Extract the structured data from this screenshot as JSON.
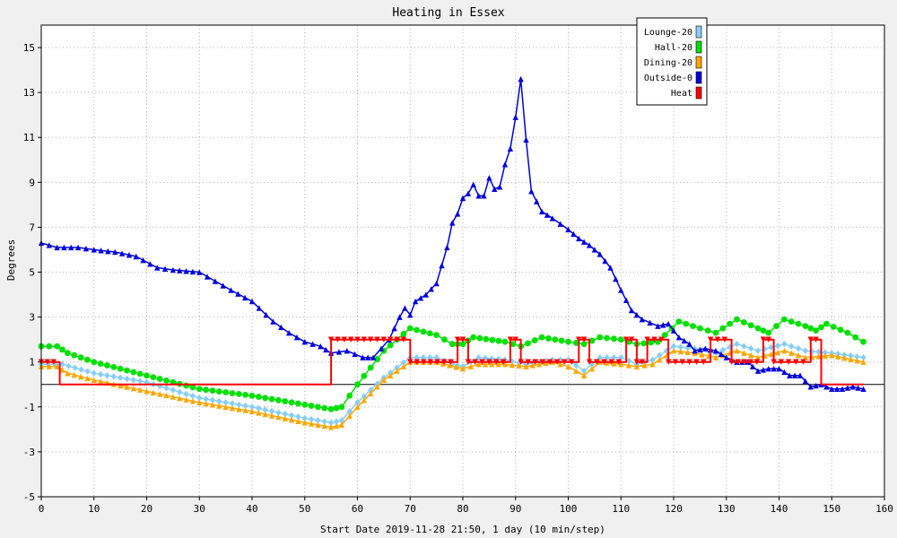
{
  "chart_data": {
    "type": "line",
    "title": "Heating in Essex",
    "xlabel": "Start Date 2019-11-28 21:50, 1 day (10 min/step)",
    "ylabel": "Degrees",
    "xlim": [
      0,
      160
    ],
    "ylim": [
      -5,
      16
    ],
    "x_ticks": [
      0,
      10,
      20,
      30,
      40,
      50,
      60,
      70,
      80,
      90,
      100,
      110,
      120,
      130,
      140,
      150,
      160
    ],
    "y_ticks": [
      -5,
      -3,
      -1,
      1,
      3,
      5,
      7,
      9,
      11,
      13,
      15
    ],
    "grid": true,
    "legend_position": "top-right",
    "series": [
      {
        "name": "Lounge-20",
        "color": "#87cefa",
        "marker": "diamond",
        "points": [
          [
            0,
            0.9
          ],
          [
            4,
            0.9
          ],
          [
            10,
            0.5
          ],
          [
            20,
            0.1
          ],
          [
            30,
            -0.6
          ],
          [
            40,
            -1.0
          ],
          [
            50,
            -1.5
          ],
          [
            55,
            -1.7
          ],
          [
            57,
            -1.6
          ],
          [
            60,
            -0.8
          ],
          [
            65,
            0.3
          ],
          [
            70,
            1.2
          ],
          [
            75,
            1.2
          ],
          [
            78,
            0.9
          ],
          [
            80,
            0.8
          ],
          [
            83,
            1.2
          ],
          [
            88,
            1.1
          ],
          [
            92,
            0.9
          ],
          [
            97,
            1.1
          ],
          [
            100,
            1.1
          ],
          [
            103,
            0.6
          ],
          [
            106,
            1.2
          ],
          [
            110,
            1.2
          ],
          [
            113,
            0.9
          ],
          [
            116,
            1.1
          ],
          [
            120,
            1.7
          ],
          [
            124,
            1.6
          ],
          [
            128,
            1.4
          ],
          [
            132,
            1.8
          ],
          [
            136,
            1.5
          ],
          [
            141,
            1.8
          ],
          [
            145,
            1.5
          ],
          [
            150,
            1.4
          ],
          [
            156,
            1.2
          ]
        ]
      },
      {
        "name": "Hall-20",
        "color": "#00e000",
        "marker": "circle",
        "points": [
          [
            0,
            1.7
          ],
          [
            3,
            1.7
          ],
          [
            5,
            1.4
          ],
          [
            10,
            1.0
          ],
          [
            20,
            0.4
          ],
          [
            30,
            -0.2
          ],
          [
            40,
            -0.5
          ],
          [
            50,
            -0.9
          ],
          [
            55,
            -1.1
          ],
          [
            57,
            -1.0
          ],
          [
            60,
            0.0
          ],
          [
            65,
            1.5
          ],
          [
            70,
            2.5
          ],
          [
            75,
            2.2
          ],
          [
            78,
            1.8
          ],
          [
            80,
            1.8
          ],
          [
            82,
            2.1
          ],
          [
            88,
            1.9
          ],
          [
            91,
            1.7
          ],
          [
            95,
            2.1
          ],
          [
            100,
            1.9
          ],
          [
            103,
            1.8
          ],
          [
            106,
            2.1
          ],
          [
            110,
            2.0
          ],
          [
            113,
            1.8
          ],
          [
            117,
            1.9
          ],
          [
            121,
            2.8
          ],
          [
            125,
            2.5
          ],
          [
            128,
            2.3
          ],
          [
            132,
            2.9
          ],
          [
            136,
            2.5
          ],
          [
            138,
            2.3
          ],
          [
            141,
            2.9
          ],
          [
            145,
            2.6
          ],
          [
            147,
            2.4
          ],
          [
            149,
            2.7
          ],
          [
            153,
            2.3
          ],
          [
            156,
            1.9
          ]
        ]
      },
      {
        "name": "Dining-20",
        "color": "#ffa500",
        "marker": "triangle-up",
        "points": [
          [
            0,
            0.8
          ],
          [
            3,
            0.8
          ],
          [
            5,
            0.5
          ],
          [
            10,
            0.2
          ],
          [
            20,
            -0.3
          ],
          [
            30,
            -0.8
          ],
          [
            40,
            -1.2
          ],
          [
            50,
            -1.7
          ],
          [
            55,
            -1.9
          ],
          [
            57,
            -1.8
          ],
          [
            60,
            -1.0
          ],
          [
            65,
            0.2
          ],
          [
            70,
            1.0
          ],
          [
            75,
            1.0
          ],
          [
            80,
            0.7
          ],
          [
            83,
            0.9
          ],
          [
            88,
            0.9
          ],
          [
            92,
            0.8
          ],
          [
            97,
            1.0
          ],
          [
            100,
            0.8
          ],
          [
            103,
            0.4
          ],
          [
            106,
            1.0
          ],
          [
            110,
            0.9
          ],
          [
            113,
            0.8
          ],
          [
            116,
            0.9
          ],
          [
            120,
            1.5
          ],
          [
            124,
            1.4
          ],
          [
            128,
            1.2
          ],
          [
            132,
            1.5
          ],
          [
            136,
            1.2
          ],
          [
            141,
            1.5
          ],
          [
            145,
            1.2
          ],
          [
            150,
            1.3
          ],
          [
            156,
            1.0
          ]
        ]
      },
      {
        "name": "Outside-0",
        "color": "#0000dd",
        "marker": "triangle-up",
        "points": [
          [
            0,
            6.3
          ],
          [
            3,
            6.1
          ],
          [
            7,
            6.1
          ],
          [
            10,
            6.0
          ],
          [
            14,
            5.9
          ],
          [
            18,
            5.7
          ],
          [
            22,
            5.2
          ],
          [
            25,
            5.1
          ],
          [
            30,
            5.0
          ],
          [
            33,
            4.6
          ],
          [
            36,
            4.2
          ],
          [
            40,
            3.7
          ],
          [
            44,
            2.8
          ],
          [
            47,
            2.3
          ],
          [
            50,
            1.9
          ],
          [
            53,
            1.7
          ],
          [
            55,
            1.4
          ],
          [
            58,
            1.5
          ],
          [
            61,
            1.2
          ],
          [
            63,
            1.2
          ],
          [
            66,
            2.0
          ],
          [
            68,
            3.0
          ],
          [
            69,
            3.4
          ],
          [
            70,
            3.1
          ],
          [
            71,
            3.7
          ],
          [
            73,
            4.0
          ],
          [
            75,
            4.5
          ],
          [
            77,
            6.1
          ],
          [
            78,
            7.2
          ],
          [
            79,
            7.6
          ],
          [
            80,
            8.3
          ],
          [
            81,
            8.5
          ],
          [
            82,
            8.9
          ],
          [
            83,
            8.4
          ],
          [
            84,
            8.4
          ],
          [
            85,
            9.2
          ],
          [
            86,
            8.7
          ],
          [
            87,
            8.8
          ],
          [
            88,
            9.8
          ],
          [
            89,
            10.5
          ],
          [
            90,
            11.9
          ],
          [
            91,
            13.6
          ],
          [
            92,
            10.9
          ],
          [
            93,
            8.6
          ],
          [
            95,
            7.7
          ],
          [
            97,
            7.4
          ],
          [
            100,
            6.9
          ],
          [
            102,
            6.5
          ],
          [
            104,
            6.2
          ],
          [
            106,
            5.8
          ],
          [
            108,
            5.2
          ],
          [
            110,
            4.2
          ],
          [
            112,
            3.3
          ],
          [
            114,
            2.9
          ],
          [
            117,
            2.6
          ],
          [
            119,
            2.7
          ],
          [
            121,
            2.1
          ],
          [
            123,
            1.8
          ],
          [
            124,
            1.5
          ],
          [
            126,
            1.6
          ],
          [
            128,
            1.5
          ],
          [
            130,
            1.2
          ],
          [
            132,
            1.0
          ],
          [
            134,
            1.0
          ],
          [
            136,
            0.6
          ],
          [
            138,
            0.7
          ],
          [
            140,
            0.7
          ],
          [
            142,
            0.4
          ],
          [
            144,
            0.4
          ],
          [
            146,
            -0.1
          ],
          [
            148,
            0.0
          ],
          [
            150,
            -0.2
          ],
          [
            152,
            -0.2
          ],
          [
            154,
            -0.1
          ],
          [
            156,
            -0.2
          ]
        ]
      },
      {
        "name": "Heat",
        "color": "#ff0000",
        "marker": "triangle-down",
        "points": [
          [
            0,
            1
          ],
          [
            3.5,
            1
          ],
          [
            3.5,
            0
          ],
          [
            55,
            0
          ],
          [
            55,
            2
          ],
          [
            70,
            2
          ],
          [
            70,
            1
          ],
          [
            79,
            1
          ],
          [
            79,
            2
          ],
          [
            81,
            2
          ],
          [
            81,
            1
          ],
          [
            89,
            1
          ],
          [
            89,
            2
          ],
          [
            91,
            2
          ],
          [
            91,
            1
          ],
          [
            102,
            1
          ],
          [
            102,
            2
          ],
          [
            104,
            2
          ],
          [
            104,
            1
          ],
          [
            111,
            1
          ],
          [
            111,
            2
          ],
          [
            113,
            2
          ],
          [
            113,
            1
          ],
          [
            115,
            1
          ],
          [
            115,
            2
          ],
          [
            119,
            2
          ],
          [
            119,
            1
          ],
          [
            127,
            1
          ],
          [
            127,
            2
          ],
          [
            131,
            2
          ],
          [
            131,
            1
          ],
          [
            137,
            1
          ],
          [
            137,
            2
          ],
          [
            139,
            2
          ],
          [
            139,
            1
          ],
          [
            146,
            1
          ],
          [
            146,
            2
          ],
          [
            148,
            2
          ],
          [
            148,
            0
          ],
          [
            156,
            0
          ]
        ]
      }
    ]
  }
}
